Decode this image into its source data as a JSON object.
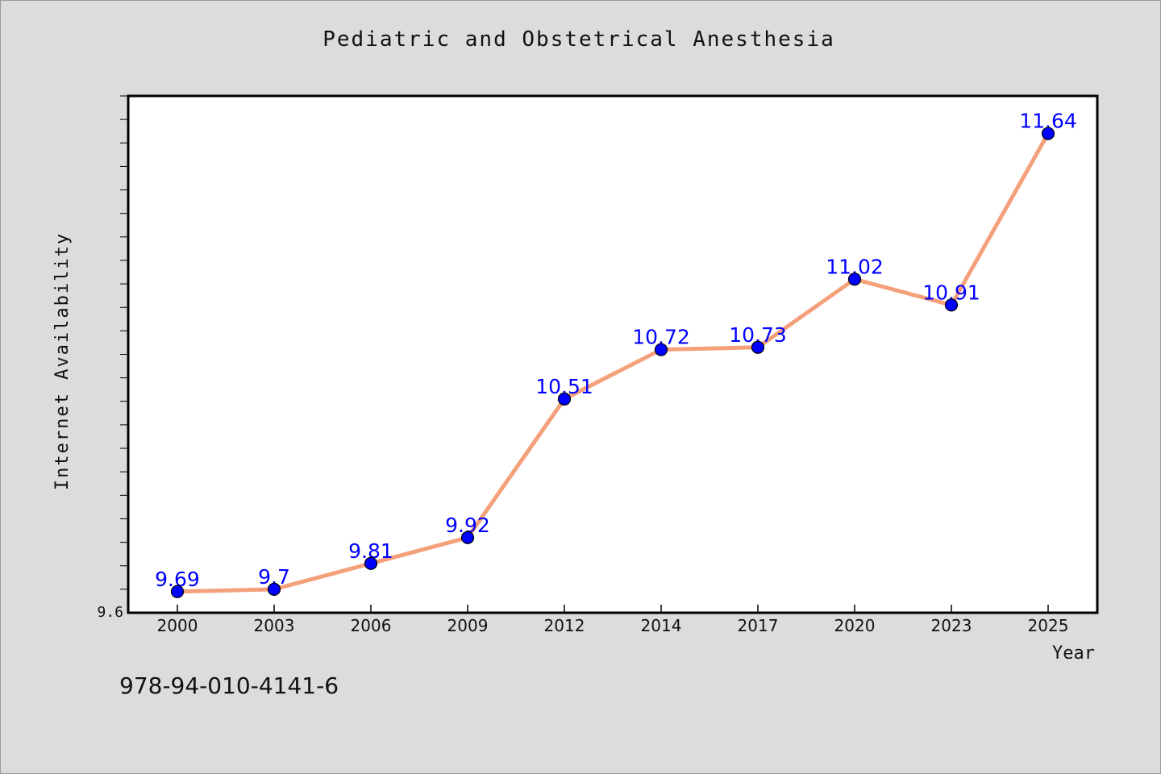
{
  "chart_data": {
    "type": "line",
    "title": "Pediatric and Obstetrical Anesthesia",
    "xlabel": "Year",
    "ylabel": "Internet Availability",
    "categories": [
      "2000",
      "2003",
      "2006",
      "2009",
      "2012",
      "2014",
      "2017",
      "2020",
      "2023",
      "2025"
    ],
    "values": [
      9.69,
      9.7,
      9.81,
      9.92,
      10.51,
      10.72,
      10.73,
      11.02,
      10.91,
      11.64
    ],
    "value_labels": [
      "9.69",
      "9.7",
      "9.81",
      "9.92",
      "10.51",
      "10.72",
      "10.73",
      "11.02",
      "10.91",
      "11.64"
    ],
    "y_tick_labels": [
      "9.6"
    ],
    "ylim": [
      9.6,
      11.8
    ],
    "grid": false,
    "legend": "none",
    "colors": {
      "line": "#f4a07a",
      "marker": "#0000ff",
      "data_label": "#0000ff",
      "plot_background": "#ffffff",
      "figure_background": "#dcdcdc"
    }
  },
  "footer": {
    "isbn": "978-94-010-4141-6"
  }
}
